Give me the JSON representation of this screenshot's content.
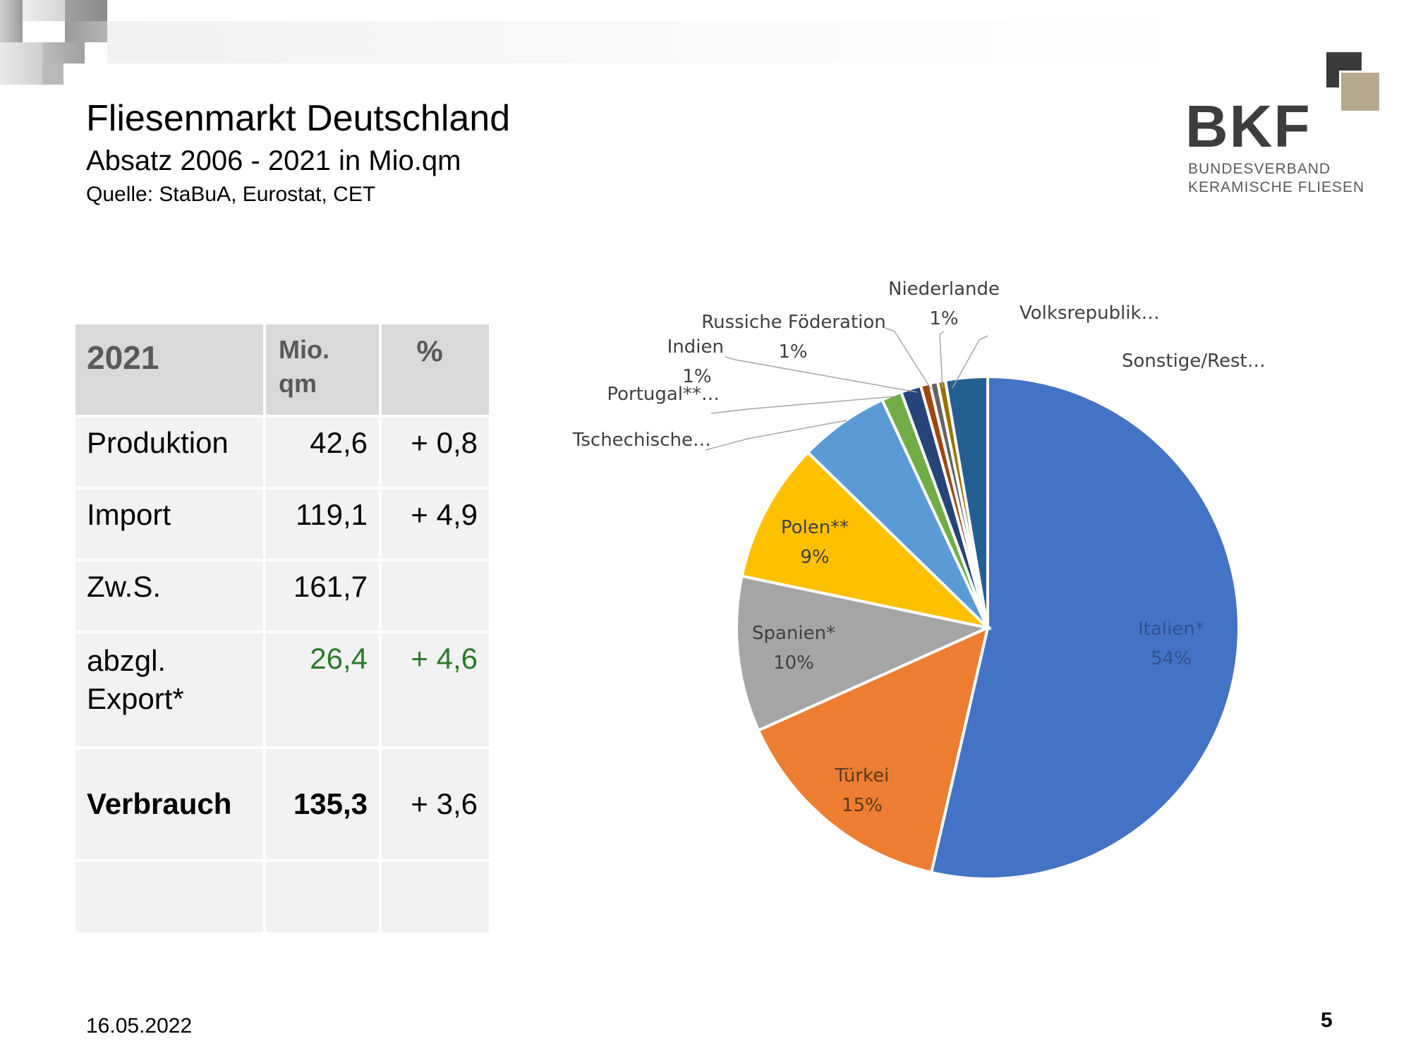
{
  "header": {
    "title": "Fliesenmarkt Deutschland",
    "subtitle": "Absatz 2006 - 2021 in Mio.qm",
    "source": "Quelle: StaBuA, Eurostat, CET"
  },
  "logo": {
    "brand": "BKF",
    "line1": "BUNDESVERBAND",
    "line2": "KERAMISCHE FLIESEN"
  },
  "table": {
    "headers": [
      "2021",
      "Mio. qm",
      "%"
    ],
    "rows": [
      {
        "label": "Produktion",
        "value": "42,6",
        "pct": "+ 0,8"
      },
      {
        "label": "Import",
        "value": "119,1",
        "pct": "+ 4,9"
      },
      {
        "label": "Zw.S.",
        "value": "161,7",
        "pct": ""
      },
      {
        "label": "abzgl. Export*",
        "value": "26,4",
        "pct": "+ 4,6"
      },
      {
        "label": "Verbrauch",
        "value": "135,3",
        "pct": "+ 3,6"
      }
    ]
  },
  "footer": {
    "date": "16.05.2022",
    "page": "5"
  },
  "chart_data": {
    "type": "pie",
    "slices": [
      {
        "label": "Italien*",
        "pct_label": "54%",
        "value": 53.6,
        "color": "#4472C4"
      },
      {
        "label": "Türkei",
        "pct_label": "15%",
        "value": 14.7,
        "color": "#ED7D31"
      },
      {
        "label": "Spanien*",
        "pct_label": "10%",
        "value": 10.0,
        "color": "#A5A5A5"
      },
      {
        "label": "Polen**",
        "pct_label": "9%",
        "value": 9.0,
        "color": "#FFC000"
      },
      {
        "label": "Tschechische…",
        "pct_label": "",
        "value": 5.8,
        "color": "#5B9BD5"
      },
      {
        "label": "Portugal**…",
        "pct_label": "",
        "value": 1.3,
        "color": "#70AD47"
      },
      {
        "label": "Indien",
        "pct_label": "1%",
        "value": 1.3,
        "color": "#264478"
      },
      {
        "label": "Russiche Föderation",
        "pct_label": "1%",
        "value": 0.6,
        "color": "#9E480E"
      },
      {
        "label": "Niederlande",
        "pct_label": "1%",
        "value": 0.5,
        "color": "#636363"
      },
      {
        "label": "Volksrepublik…",
        "pct_label": "",
        "value": 0.5,
        "color": "#997300"
      },
      {
        "label": "Sonstige/Rest…",
        "pct_label": "",
        "value": 2.7,
        "color": "#255E91"
      }
    ]
  }
}
